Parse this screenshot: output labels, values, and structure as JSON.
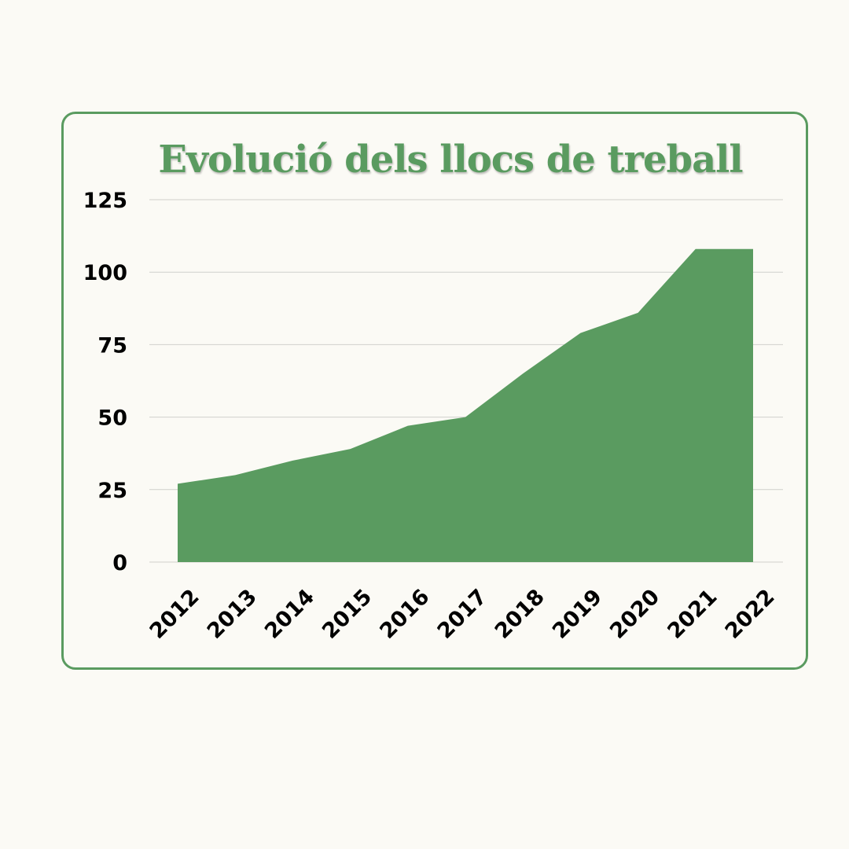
{
  "chart_data": {
    "type": "area",
    "title": "Evolució dels llocs de treball",
    "xlabel": "",
    "ylabel": "",
    "categories": [
      "2012",
      "2013",
      "2014",
      "2015",
      "2016",
      "2017",
      "2018",
      "2019",
      "2020",
      "2021",
      "2022"
    ],
    "values": [
      27,
      30,
      35,
      39,
      47,
      50,
      65,
      79,
      86,
      108,
      108
    ],
    "ylim": [
      0,
      125
    ],
    "yticks": [
      "0",
      "25",
      "50",
      "75",
      "100",
      "125"
    ],
    "grid": true,
    "legend": "none",
    "colors": {
      "area": "#5a9b60",
      "border": "#5a9b60",
      "title": "#5a9b60",
      "grid": "#d0d0cc",
      "background": "#fbfaf5"
    }
  }
}
